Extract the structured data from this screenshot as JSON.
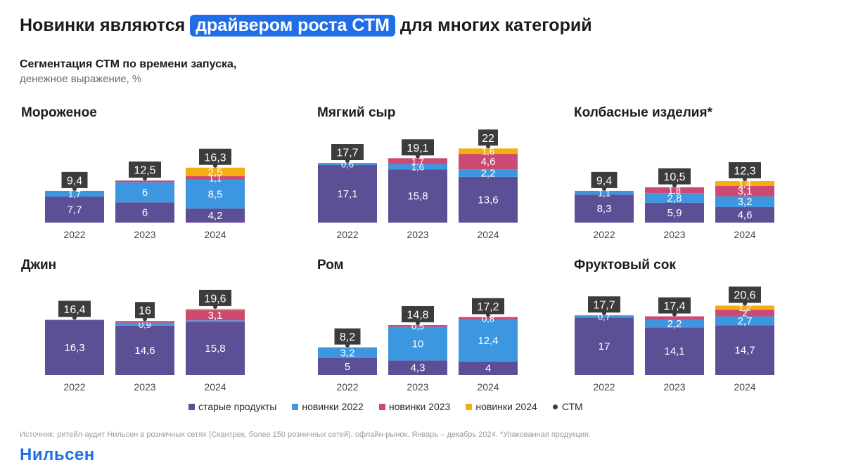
{
  "title": {
    "before": "Новинки являются ",
    "highlight": "драйвером роста СТМ",
    "after": " для многих категорий"
  },
  "subtitle": "Сегментация СТМ по времени запуска,",
  "subtitle2": "денежное выражение, %",
  "colors": {
    "old": "#5d4f96",
    "new2022": "#3d96e0",
    "new2023": "#cc4a72",
    "new2024": "#f3ae12",
    "stm": "#3a3a3a",
    "title_highlight": "#1f6ee8"
  },
  "legend": [
    {
      "label": "старые продукты",
      "color": "#5d4f96",
      "shape": "square"
    },
    {
      "label": "новинки 2022",
      "color": "#3d96e0",
      "shape": "square"
    },
    {
      "label": "новинки 2023",
      "color": "#cc4a72",
      "shape": "square"
    },
    {
      "label": "новинки 2024",
      "color": "#f3ae12",
      "shape": "square"
    },
    {
      "label": "СТМ",
      "color": "#3a3a3a",
      "shape": "dot"
    }
  ],
  "chart_data": [
    {
      "type": "bar",
      "stacked": true,
      "title": "Мороженое",
      "categories": [
        "2022",
        "2023",
        "2024"
      ],
      "series": [
        {
          "name": "старые продукты",
          "values": [
            7.7,
            6,
            4.2
          ],
          "labels": [
            "7,7",
            "6",
            "4,2"
          ]
        },
        {
          "name": "новинки 2022",
          "values": [
            1.7,
            6,
            8.5
          ],
          "labels": [
            "1,7",
            "6",
            "8,5"
          ]
        },
        {
          "name": "новинки 2023",
          "values": [
            0,
            0.5,
            1.1
          ],
          "labels": [
            "",
            "",
            "1,1"
          ]
        },
        {
          "name": "новинки 2024",
          "values": [
            0,
            0,
            2.5
          ],
          "labels": [
            "",
            "",
            "2,5"
          ]
        }
      ],
      "totals": [
        9.4,
        12.5,
        16.3
      ],
      "total_labels": [
        "9,4",
        "12,5",
        "16,3"
      ]
    },
    {
      "type": "bar",
      "stacked": true,
      "title": "Мягкий сыр",
      "categories": [
        "2022",
        "2023",
        "2024"
      ],
      "series": [
        {
          "name": "старые продукты",
          "values": [
            17.1,
            15.8,
            13.6
          ],
          "labels": [
            "17,1",
            "15,8",
            "13,6"
          ]
        },
        {
          "name": "новинки 2022",
          "values": [
            0.6,
            1.6,
            2.2
          ],
          "labels": [
            "0,6",
            "1,6",
            "2,2"
          ]
        },
        {
          "name": "новинки 2023",
          "values": [
            0,
            1.7,
            4.6
          ],
          "labels": [
            "",
            "1,7",
            "4,6"
          ]
        },
        {
          "name": "новинки 2024",
          "values": [
            0,
            0,
            1.6
          ],
          "labels": [
            "",
            "",
            "1,6"
          ]
        }
      ],
      "totals": [
        17.7,
        19.1,
        22
      ],
      "total_labels": [
        "17,7",
        "19,1",
        "22"
      ]
    },
    {
      "type": "bar",
      "stacked": true,
      "title": "Колбасные изделия*",
      "categories": [
        "2022",
        "2023",
        "2024"
      ],
      "series": [
        {
          "name": "старые продукты",
          "values": [
            8.3,
            5.9,
            4.6
          ],
          "labels": [
            "8,3",
            "5,9",
            "4,6"
          ]
        },
        {
          "name": "новинки 2022",
          "values": [
            1.1,
            2.8,
            3.2
          ],
          "labels": [
            "1,1",
            "2,8",
            "3,2"
          ]
        },
        {
          "name": "новинки 2023",
          "values": [
            0,
            1.8,
            3.1
          ],
          "labels": [
            "",
            "1,8",
            "3,1"
          ]
        },
        {
          "name": "новинки 2024",
          "values": [
            0,
            0,
            1.4
          ],
          "labels": [
            "",
            "",
            "1,4"
          ]
        }
      ],
      "totals": [
        9.4,
        10.5,
        12.3
      ],
      "total_labels": [
        "9,4",
        "10,5",
        "12,3"
      ]
    },
    {
      "type": "bar",
      "stacked": true,
      "title": "Джин",
      "categories": [
        "2022",
        "2023",
        "2024"
      ],
      "series": [
        {
          "name": "старые продукты",
          "values": [
            16.3,
            14.6,
            15.8
          ],
          "labels": [
            "16,3",
            "14,6",
            "15,8"
          ]
        },
        {
          "name": "новинки 2022",
          "values": [
            0.1,
            0.9,
            0.4
          ],
          "labels": [
            "",
            "0,9",
            ""
          ]
        },
        {
          "name": "новинки 2023",
          "values": [
            0,
            0.5,
            3.1
          ],
          "labels": [
            "",
            "",
            "3,1"
          ]
        },
        {
          "name": "новинки 2024",
          "values": [
            0,
            0,
            0.3
          ],
          "labels": [
            "",
            "",
            ""
          ]
        }
      ],
      "totals": [
        16.4,
        16,
        19.6
      ],
      "total_labels": [
        "16,4",
        "16",
        "19,6"
      ]
    },
    {
      "type": "bar",
      "stacked": true,
      "title": "Ром",
      "categories": [
        "2022",
        "2023",
        "2024"
      ],
      "series": [
        {
          "name": "старые продукты",
          "values": [
            5,
            4.3,
            4
          ],
          "labels": [
            "5",
            "4,3",
            "4"
          ]
        },
        {
          "name": "новинки 2022",
          "values": [
            3.2,
            10,
            12.4
          ],
          "labels": [
            "3,2",
            "10",
            "12,4"
          ]
        },
        {
          "name": "новинки 2023",
          "values": [
            0,
            0.5,
            0.8
          ],
          "labels": [
            "",
            "0,5",
            "0,8"
          ]
        },
        {
          "name": "новинки 2024",
          "values": [
            0,
            0,
            0
          ],
          "labels": [
            "",
            "",
            ""
          ]
        }
      ],
      "totals": [
        8.2,
        14.8,
        17.2
      ],
      "total_labels": [
        "8,2",
        "14,8",
        "17,2"
      ]
    },
    {
      "type": "bar",
      "stacked": true,
      "title": "Фруктовый сок",
      "categories": [
        "2022",
        "2023",
        "2024"
      ],
      "series": [
        {
          "name": "старые продукты",
          "values": [
            17,
            14.1,
            14.7
          ],
          "labels": [
            "17",
            "14,1",
            "14,7"
          ]
        },
        {
          "name": "новинки 2022",
          "values": [
            0.7,
            2.2,
            2.7
          ],
          "labels": [
            "0,7",
            "2,2",
            "2,7"
          ]
        },
        {
          "name": "новинки 2023",
          "values": [
            0,
            1.1,
            2
          ],
          "labels": [
            "",
            "",
            "2"
          ]
        },
        {
          "name": "новинки 2024",
          "values": [
            0,
            0,
            1.2
          ],
          "labels": [
            "",
            "",
            "1,2"
          ]
        }
      ],
      "totals": [
        17.7,
        17.4,
        20.6
      ],
      "total_labels": [
        "17,7",
        "17,4",
        "20,6"
      ]
    }
  ],
  "source": "Источник: ритейл-аудит Нильсен в розничных сетях (Скантрек, более 150 розничных сетей), офлайн-рынок. Январь – декабрь 2024. *Упакованная продукция.",
  "logo": "Нильсен"
}
